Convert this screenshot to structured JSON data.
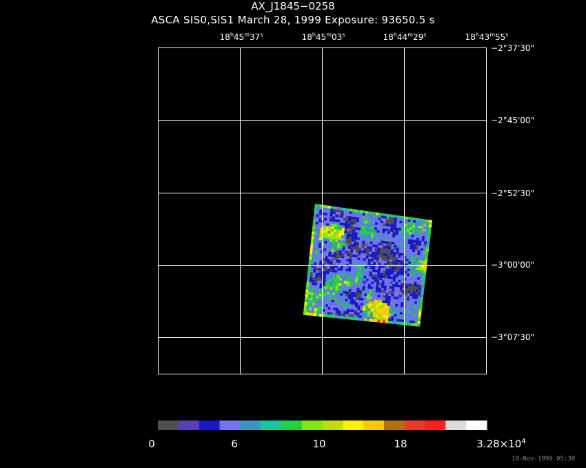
{
  "title": "AX_J1845−0258",
  "subtitle": "ASCA SIS0,SIS1 March 28, 1999 Exposure: 93650.5 s",
  "ra_ticks": [
    {
      "h": "18",
      "m": "45",
      "s": "37"
    },
    {
      "h": "18",
      "m": "45",
      "s": "03"
    },
    {
      "h": "18",
      "m": "44",
      "s": "29"
    },
    {
      "h": "18",
      "m": "43",
      "s": "55"
    }
  ],
  "dec_ticks": [
    "−2°37'30\"",
    "−2°45'00\"",
    "−2°52'30\"",
    "−3°00'00\"",
    "−3°07'30\""
  ],
  "colorbar": {
    "colors": [
      "#4f4f4f",
      "#5a3fb5",
      "#1919c8",
      "#7373f0",
      "#3c96c0",
      "#16c8a0",
      "#22d23c",
      "#82e614",
      "#bedc0f",
      "#fff000",
      "#ffc800",
      "#b46e14",
      "#e63c28",
      "#ff1e1e",
      "#dcdcdc",
      "#ffffff"
    ],
    "labels": [
      "0",
      "6",
      "10",
      "18"
    ],
    "max_label_base": "3.28×10",
    "max_label_exp": "4"
  },
  "footer_timestamp": "18-Nov-1999 05:30"
}
